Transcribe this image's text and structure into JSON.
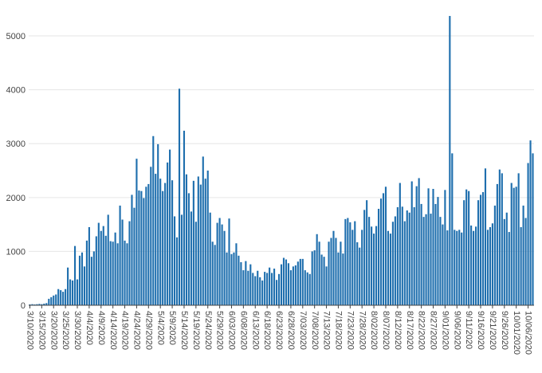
{
  "chart_data": {
    "type": "bar",
    "title": "",
    "xlabel": "",
    "ylabel": "",
    "ylim": [
      0,
      5400
    ],
    "grid": true,
    "bar_color": "#1f6fae",
    "axis_color": "#444444",
    "grid_color": "#e6e6e6",
    "yticks": [
      0,
      1000,
      2000,
      3000,
      4000,
      5000
    ],
    "ytick_labels": [
      "0",
      "1000",
      "2000",
      "3000",
      "4000",
      "5000"
    ],
    "start_label": "3/10/2020",
    "tick_every": 5,
    "xtick_labels": [
      "3/10/2020",
      "3/15/2020",
      "3/20/2020",
      "3/25/2020",
      "3/30/2020",
      "4/4/2020",
      "4/9/2020",
      "4/14/2020",
      "4/19/2020",
      "4/24/2020",
      "4/29/2020",
      "5/4/2020",
      "5/9/2020",
      "5/14/2020",
      "5/19/2020",
      "5/24/2020",
      "5/29/2020",
      "6/03/2020",
      "6/08/2020",
      "6/13/2020",
      "6/18/2020",
      "6/23/2020",
      "6/28/2020",
      "7/03/2020",
      "7/08/2020",
      "7/13/2020",
      "7/18/2020",
      "7/23/2020",
      "7/28/2020",
      "8/02/2020",
      "8/07/2020",
      "8/12/2020",
      "8/17/2020",
      "8/22/2020",
      "8/27/2020",
      "9/01/2020",
      "9/06/2020",
      "9/11/2020",
      "9/16/2020",
      "9/21/2020",
      "9/26/2020",
      "10/01/2020",
      "10/06/2020"
    ],
    "values": [
      15,
      20,
      15,
      20,
      25,
      20,
      30,
      40,
      120,
      150,
      180,
      200,
      300,
      280,
      250,
      300,
      700,
      480,
      460,
      1100,
      480,
      920,
      980,
      720,
      1200,
      1450,
      900,
      1000,
      1280,
      1530,
      1380,
      1470,
      1290,
      1680,
      1190,
      1180,
      1350,
      1150,
      1850,
      1590,
      1200,
      1150,
      1560,
      2050,
      1810,
      2720,
      2130,
      2120,
      1990,
      2200,
      2250,
      2570,
      3140,
      2440,
      2990,
      2350,
      2120,
      2270,
      2650,
      2890,
      2320,
      1650,
      1260,
      4020,
      1680,
      3240,
      2430,
      2080,
      1740,
      2310,
      1550,
      2390,
      2240,
      2760,
      2350,
      2500,
      1720,
      1180,
      1120,
      1530,
      1620,
      1500,
      1380,
      980,
      1610,
      950,
      980,
      1150,
      920,
      800,
      650,
      820,
      640,
      760,
      600,
      540,
      640,
      520,
      460,
      620,
      600,
      700,
      600,
      680,
      470,
      580,
      760,
      880,
      850,
      780,
      650,
      720,
      740,
      810,
      860,
      860,
      650,
      610,
      580,
      1000,
      1020,
      1320,
      1180,
      940,
      900,
      720,
      1180,
      1250,
      1380,
      1250,
      980,
      1180,
      960,
      1600,
      1620,
      1540,
      1400,
      1560,
      1170,
      1070,
      1400,
      1770,
      1950,
      1640,
      1460,
      1330,
      1470,
      1790,
      1980,
      2080,
      2200,
      1380,
      1330,
      1550,
      1650,
      1820,
      2270,
      1830,
      1560,
      1760,
      1720,
      2300,
      1820,
      2210,
      2360,
      1880,
      1640,
      1690,
      2170,
      1700,
      2160,
      1880,
      2010,
      1640,
      1500,
      2140,
      1390,
      5370,
      2820,
      1400,
      1380,
      1400,
      1350,
      1950,
      2150,
      2120,
      1480,
      1380,
      1460,
      1950,
      2050,
      2100,
      2540,
      1400,
      1450,
      1520,
      1850,
      2250,
      2520,
      2450,
      1600,
      1720,
      1360,
      2270,
      2180,
      2200,
      2450,
      1450,
      1850,
      1620,
      2640,
      3060,
      2820
    ]
  }
}
